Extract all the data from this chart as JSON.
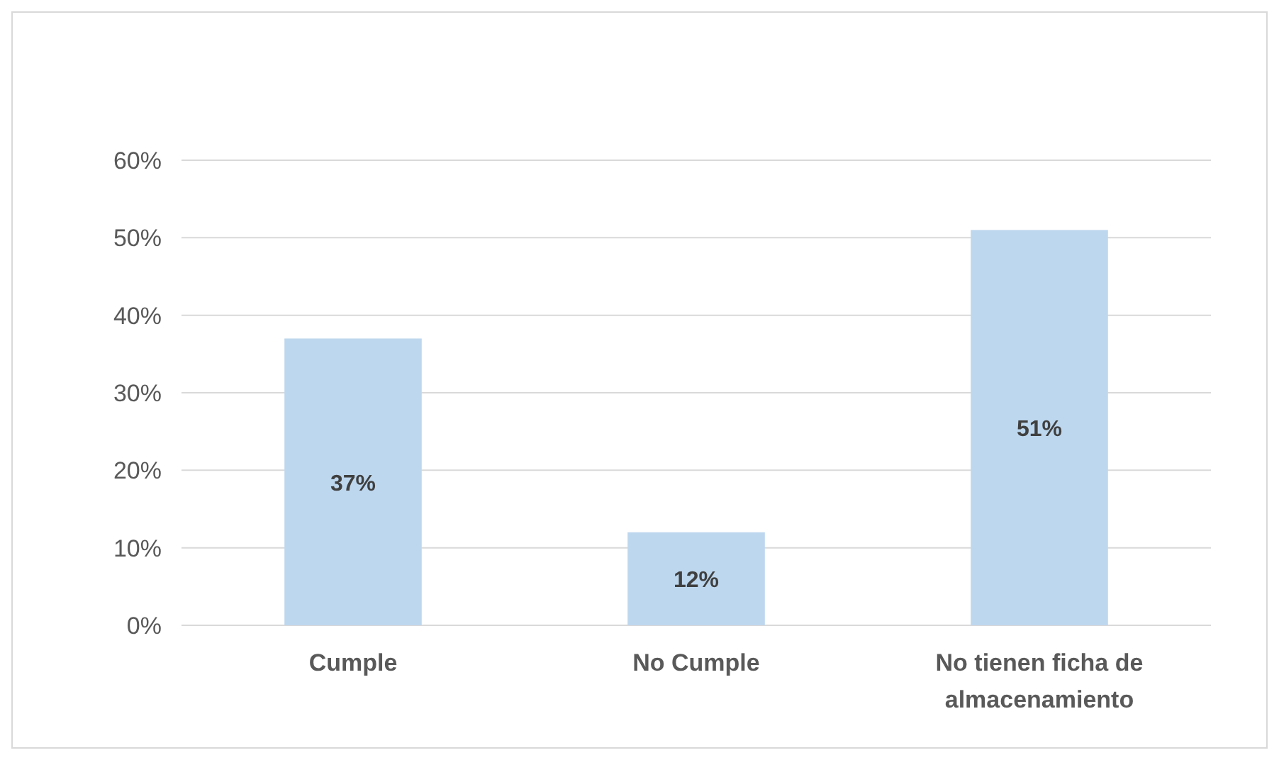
{
  "chart_data": {
    "type": "bar",
    "categories": [
      "Cumple",
      "No Cumple",
      "No tienen ficha de almacenamiento"
    ],
    "values": [
      37,
      12,
      51
    ],
    "color": "#bdd7ee",
    "value_labels": [
      "37%",
      "12%",
      "51%"
    ],
    "ylim": [
      0,
      60
    ],
    "yticks": [
      {
        "value": 0,
        "label": "0%"
      },
      {
        "value": 10,
        "label": "10%"
      },
      {
        "value": 20,
        "label": "20%"
      },
      {
        "value": 30,
        "label": "30%"
      },
      {
        "value": 40,
        "label": "40%"
      },
      {
        "value": 50,
        "label": "50%"
      },
      {
        "value": 60,
        "label": "60%"
      }
    ],
    "grid": "y"
  }
}
